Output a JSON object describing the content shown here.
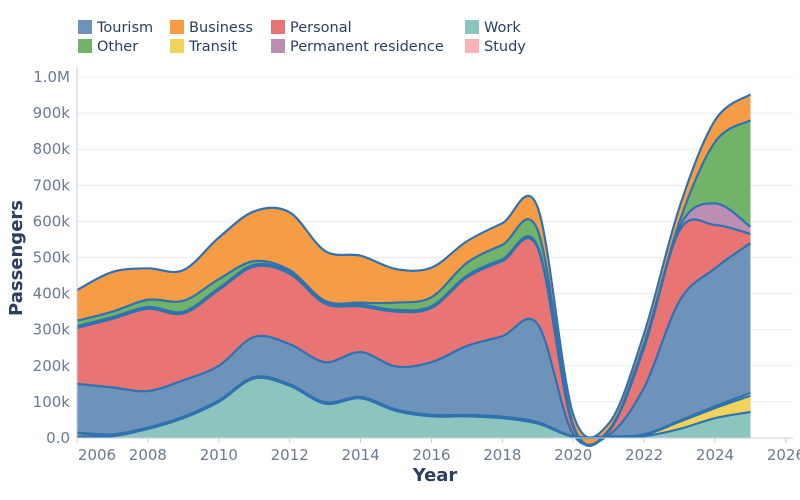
{
  "chart_data": {
    "type": "area",
    "stacked": true,
    "xlabel": "Year",
    "ylabel": "Passengers",
    "xlim": [
      2006,
      2026.2
    ],
    "ylim": [
      0,
      1000000
    ],
    "x_ticks": [
      2006,
      2008,
      2010,
      2012,
      2014,
      2016,
      2018,
      2020,
      2022,
      2024,
      2026
    ],
    "y_ticks": [
      0,
      100000,
      200000,
      300000,
      400000,
      500000,
      600000,
      700000,
      800000,
      900000,
      1000000
    ],
    "y_tick_labels": [
      "0.0",
      "100k",
      "200k",
      "300k",
      "400k",
      "500k",
      "600k",
      "700k",
      "800k",
      "900k",
      "1.0M"
    ],
    "grid": true,
    "legend_placement": "top",
    "line_color": "#2e72b0",
    "x": [
      2006,
      2007,
      2008,
      2009,
      2010,
      2011,
      2012,
      2013,
      2014,
      2015,
      2016,
      2017,
      2018,
      2019,
      2020,
      2021,
      2022,
      2023,
      2024,
      2025
    ],
    "series": [
      {
        "name": "Work",
        "color": "#8cc5be",
        "values": [
          5000,
          5000,
          25000,
          55000,
          100000,
          165000,
          145000,
          95000,
          110000,
          75000,
          60000,
          60000,
          55000,
          40000,
          3000,
          2000,
          5000,
          25000,
          55000,
          72000
        ]
      },
      {
        "name": "Transit",
        "color": "#f1d35c",
        "values": [
          8000,
          3000,
          2000,
          2000,
          2000,
          2000,
          2000,
          2000,
          2000,
          2000,
          2000,
          2000,
          2000,
          2000,
          1000,
          1000,
          3000,
          20000,
          28000,
          45000
        ]
      },
      {
        "name": "Study",
        "color": "#fdb2b8",
        "values": [
          2000,
          2000,
          2000,
          2000,
          2000,
          2000,
          2000,
          2000,
          2000,
          2000,
          2000,
          2000,
          2000,
          2000,
          1000,
          1000,
          2000,
          3000,
          5000,
          8000
        ]
      },
      {
        "name": "Tourism",
        "color": "#6d93ba",
        "values": [
          135000,
          130000,
          101000,
          101000,
          96000,
          111000,
          111000,
          111000,
          124000,
          119000,
          146000,
          191000,
          223000,
          271000,
          5000,
          4000,
          130000,
          332000,
          382000,
          415000
        ]
      },
      {
        "name": "Personal",
        "color": "#e87474",
        "values": [
          155000,
          190000,
          228000,
          185000,
          210000,
          195000,
          195000,
          162000,
          127000,
          152000,
          150000,
          190000,
          208000,
          210000,
          20000,
          10000,
          110000,
          195000,
          120000,
          25000
        ]
      },
      {
        "name": "Permanent residence",
        "color": "#bd8eb4",
        "values": [
          5000,
          5000,
          5000,
          5000,
          5000,
          5000,
          5000,
          5000,
          5000,
          5000,
          5000,
          5000,
          5000,
          5000,
          2000,
          1000,
          3000,
          10000,
          60000,
          20000
        ]
      },
      {
        "name": "Other",
        "color": "#72b36a",
        "values": [
          15000,
          15000,
          20000,
          30000,
          25000,
          10000,
          5000,
          3000,
          5000,
          20000,
          25000,
          35000,
          40000,
          45000,
          5000,
          3000,
          10000,
          15000,
          170000,
          295000
        ]
      },
      {
        "name": "Business",
        "color": "#f59c45",
        "values": [
          85000,
          110000,
          87000,
          85000,
          115000,
          138000,
          160000,
          138000,
          130000,
          93000,
          82000,
          60000,
          60000,
          63000,
          28000,
          18000,
          27000,
          40000,
          60000,
          72000
        ]
      }
    ],
    "legend_order": [
      "Tourism",
      "Business",
      "Personal",
      "Work",
      "Other",
      "Transit",
      "Permanent residence",
      "Study"
    ]
  }
}
